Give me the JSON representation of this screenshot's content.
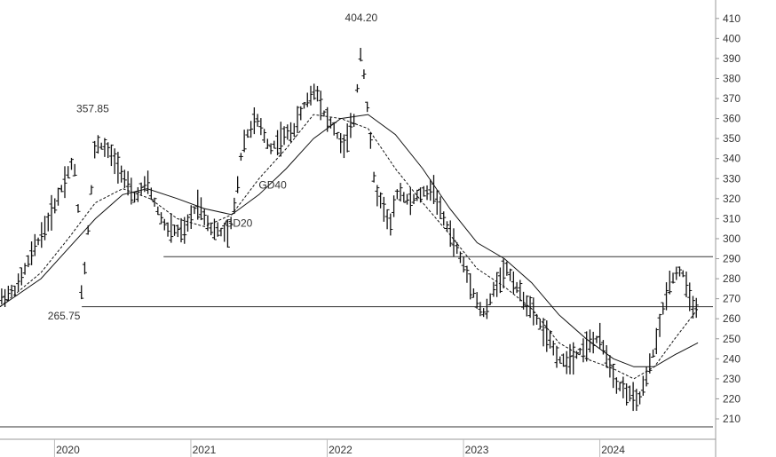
{
  "chart_data": {
    "type": "ohlc",
    "title": "",
    "xlabel": "",
    "ylabel": "",
    "ylim": [
      202,
      418
    ],
    "y_ticks": [
      210,
      220,
      230,
      240,
      250,
      260,
      270,
      280,
      290,
      300,
      310,
      320,
      330,
      340,
      350,
      360,
      370,
      380,
      390,
      400,
      410
    ],
    "x_ticks": [
      "2020",
      "2021",
      "2022",
      "2023",
      "2024"
    ],
    "x_tick_positions": [
      2020.0,
      2021.0,
      2022.0,
      2023.0,
      2024.0
    ],
    "xlim": [
      2019.6,
      2024.83
    ],
    "annotations": [
      {
        "label": "404.20",
        "x": 2022.25,
        "y": 404.2
      },
      {
        "label": "357.85",
        "x": 2020.28,
        "y": 357.85
      },
      {
        "label": "265.75",
        "x": 2020.2,
        "y": 265.75
      },
      {
        "label": "GD40",
        "x": 2021.6,
        "y": 325
      },
      {
        "label": "GD20",
        "x": 2021.35,
        "y": 306
      }
    ],
    "horizontal_lines": [
      {
        "y": 291,
        "x_start": 2020.8,
        "x_end": 2024.83
      },
      {
        "y": 266,
        "x_start": 2020.2,
        "x_end": 2024.83
      },
      {
        "y": 206,
        "x_start": 2019.6,
        "x_end": 2024.83
      }
    ],
    "price_anchors": [
      [
        2019.6,
        270
      ],
      [
        2019.72,
        275
      ],
      [
        2019.85,
        295
      ],
      [
        2019.95,
        308
      ],
      [
        2020.05,
        325
      ],
      [
        2020.14,
        340
      ],
      [
        2020.18,
        310
      ],
      [
        2020.2,
        268
      ],
      [
        2020.24,
        300
      ],
      [
        2020.3,
        348
      ],
      [
        2020.38,
        345
      ],
      [
        2020.48,
        335
      ],
      [
        2020.58,
        320
      ],
      [
        2020.68,
        328
      ],
      [
        2020.75,
        315
      ],
      [
        2020.82,
        305
      ],
      [
        2020.95,
        303
      ],
      [
        2021.05,
        318
      ],
      [
        2021.15,
        305
      ],
      [
        2021.28,
        302
      ],
      [
        2021.33,
        320
      ],
      [
        2021.38,
        348
      ],
      [
        2021.48,
        360
      ],
      [
        2021.58,
        345
      ],
      [
        2021.66,
        350
      ],
      [
        2021.76,
        355
      ],
      [
        2021.84,
        368
      ],
      [
        2021.92,
        375
      ],
      [
        2021.98,
        362
      ],
      [
        2022.05,
        355
      ],
      [
        2022.12,
        345
      ],
      [
        2022.2,
        360
      ],
      [
        2022.25,
        396
      ],
      [
        2022.3,
        362
      ],
      [
        2022.35,
        325
      ],
      [
        2022.42,
        315
      ],
      [
        2022.46,
        305
      ],
      [
        2022.52,
        325
      ],
      [
        2022.6,
        318
      ],
      [
        2022.68,
        322
      ],
      [
        2022.78,
        325
      ],
      [
        2022.84,
        312
      ],
      [
        2022.92,
        300
      ],
      [
        2022.97,
        292
      ],
      [
        2023.05,
        278
      ],
      [
        2023.12,
        265
      ],
      [
        2023.16,
        262
      ],
      [
        2023.24,
        278
      ],
      [
        2023.32,
        285
      ],
      [
        2023.42,
        272
      ],
      [
        2023.52,
        262
      ],
      [
        2023.62,
        250
      ],
      [
        2023.72,
        238
      ],
      [
        2023.82,
        242
      ],
      [
        2023.93,
        248
      ],
      [
        2024.0,
        250
      ],
      [
        2024.07,
        238
      ],
      [
        2024.12,
        228
      ],
      [
        2024.22,
        222
      ],
      [
        2024.28,
        218
      ],
      [
        2024.34,
        230
      ],
      [
        2024.42,
        250
      ],
      [
        2024.48,
        270
      ],
      [
        2024.52,
        280
      ],
      [
        2024.6,
        285
      ],
      [
        2024.66,
        270
      ],
      [
        2024.72,
        263
      ]
    ],
    "ma_line_anchors": [
      [
        2019.6,
        266
      ],
      [
        2019.9,
        280
      ],
      [
        2020.1,
        295
      ],
      [
        2020.3,
        310
      ],
      [
        2020.5,
        322
      ],
      [
        2020.68,
        325
      ],
      [
        2020.9,
        320
      ],
      [
        2021.1,
        315
      ],
      [
        2021.3,
        312
      ],
      [
        2021.5,
        322
      ],
      [
        2021.7,
        335
      ],
      [
        2021.9,
        350
      ],
      [
        2022.1,
        360
      ],
      [
        2022.3,
        362
      ],
      [
        2022.5,
        352
      ],
      [
        2022.7,
        335
      ],
      [
        2022.9,
        315
      ],
      [
        2023.1,
        298
      ],
      [
        2023.3,
        290
      ],
      [
        2023.5,
        278
      ],
      [
        2023.7,
        262
      ],
      [
        2023.9,
        250
      ],
      [
        2024.1,
        240
      ],
      [
        2024.25,
        236
      ],
      [
        2024.4,
        236
      ],
      [
        2024.55,
        242
      ],
      [
        2024.72,
        248
      ]
    ],
    "ma_dashed_anchors": [
      [
        2019.6,
        266
      ],
      [
        2019.9,
        283
      ],
      [
        2020.1,
        300
      ],
      [
        2020.3,
        318
      ],
      [
        2020.5,
        325
      ],
      [
        2020.7,
        320
      ],
      [
        2020.9,
        310
      ],
      [
        2021.1,
        306
      ],
      [
        2021.3,
        312
      ],
      [
        2021.5,
        330
      ],
      [
        2021.7,
        345
      ],
      [
        2021.9,
        362
      ],
      [
        2022.1,
        360
      ],
      [
        2022.3,
        355
      ],
      [
        2022.5,
        335
      ],
      [
        2022.7,
        318
      ],
      [
        2022.9,
        302
      ],
      [
        2023.1,
        285
      ],
      [
        2023.3,
        276
      ],
      [
        2023.5,
        265
      ],
      [
        2023.7,
        248
      ],
      [
        2023.9,
        240
      ],
      [
        2024.1,
        235
      ],
      [
        2024.25,
        230
      ],
      [
        2024.4,
        236
      ],
      [
        2024.55,
        250
      ],
      [
        2024.72,
        265
      ]
    ],
    "bar_count": 210
  },
  "colors": {
    "background": "#ffffff",
    "price_bar": "#111111",
    "ma_line": "#111111",
    "reference_line": "#333333",
    "axis_text": "#333333"
  }
}
